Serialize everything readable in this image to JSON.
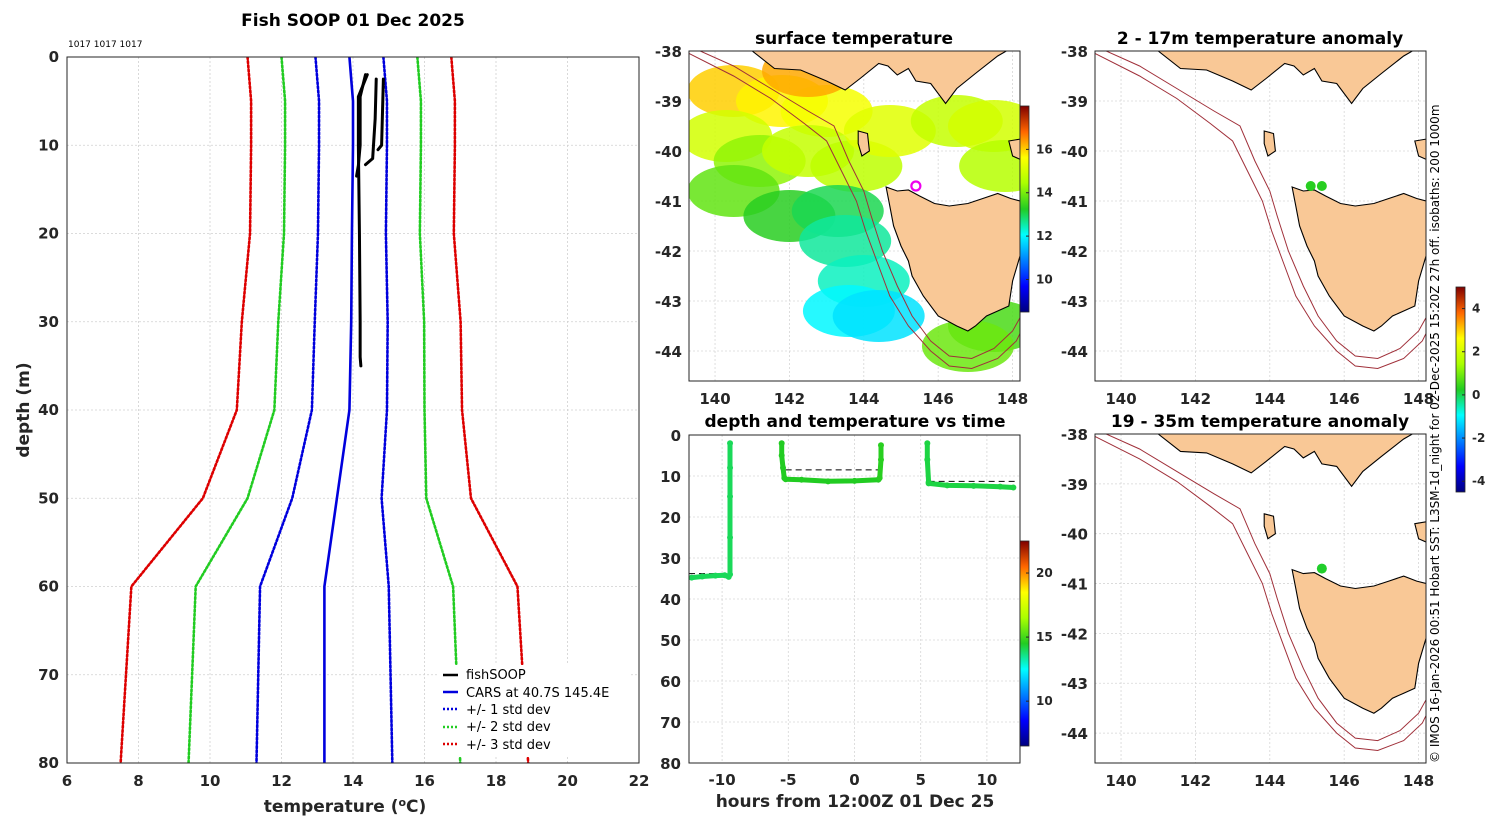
{
  "figure_title": "Fish SOOP 01 Dec 2025",
  "credit": "© IMOS 16-Jan-2026 00:51 Hobart SST: L3SM-1d_night for 02-Dec-2025 15:20Z 27h off. isobaths: 200  1000m",
  "colors": {
    "fish": "#000000",
    "cars": "#0000dd",
    "sd1": "#0000dd",
    "sd2": "#22cc22",
    "sd3": "#dd0000",
    "land": "#f9c896",
    "isobath": "#a0303a",
    "obs_point": "#22cc22",
    "marker": "#ee00ee"
  },
  "chart_data": [
    {
      "name": "profile",
      "type": "line",
      "title": "Fish SOOP 01 Dec 2025",
      "top_label": "1017 1017 1017",
      "xlabel": "temperature (",
      "xlabel_sup": "o",
      "xlabel_end": "C)",
      "ylabel": "depth (m)",
      "xlim": [
        6,
        22
      ],
      "ylim": [
        0,
        80
      ],
      "xticks": [
        6,
        8,
        10,
        12,
        14,
        16,
        18,
        20,
        22
      ],
      "yticks": [
        0,
        10,
        20,
        30,
        40,
        50,
        60,
        70,
        80
      ],
      "legend": [
        "fishSOOP",
        "CARS at 40.7S 145.4E",
        "+/- 1 std dev",
        "+/- 2 std dev",
        "+/- 3 std dev"
      ],
      "depth": [
        0,
        5,
        10,
        20,
        30,
        40,
        50,
        60,
        70,
        80
      ],
      "cars": [
        13.9,
        14.0,
        14.0,
        13.97,
        13.95,
        13.9,
        13.55,
        13.2,
        13.2,
        13.2
      ],
      "std": [
        0.95,
        0.95,
        0.95,
        0.95,
        1.02,
        1.05,
        1.25,
        1.8,
        1.85,
        1.9
      ],
      "fish_casts": [
        {
          "depth": [
            2.0,
            4.5,
            10.0,
            12.3,
            13.5
          ],
          "temp": [
            14.35,
            14.2,
            14.2,
            14.15,
            14.1
          ]
        },
        {
          "depth": [
            2.5,
            7.0,
            11.5,
            12.2
          ],
          "temp": [
            14.65,
            14.62,
            14.55,
            14.35
          ]
        },
        {
          "depth": [
            2.5,
            7.0,
            10.0,
            10.5
          ],
          "temp": [
            14.85,
            14.82,
            14.8,
            14.7
          ]
        },
        {
          "depth": [
            2.0,
            4.5,
            10.0,
            20.0,
            30.0,
            34.0,
            35.0
          ],
          "temp": [
            14.4,
            14.15,
            14.15,
            14.18,
            14.2,
            14.2,
            14.22
          ]
        }
      ]
    },
    {
      "name": "surface_map",
      "type": "heatmap",
      "title": "surface temperature",
      "xlim": [
        139.3,
        148.2
      ],
      "ylim": [
        -44.6,
        -38
      ],
      "xticks": [
        140,
        142,
        144,
        146,
        148
      ],
      "yticks": [
        -38,
        -39,
        -40,
        -41,
        -42,
        -43,
        -44
      ],
      "colorbar": {
        "vmin": 8.5,
        "vmax": 18,
        "ticks": [
          10,
          12,
          14,
          16
        ]
      },
      "marker": {
        "lon": 145.4,
        "lat": -40.7
      },
      "sst_patches": [
        {
          "lon": 140.5,
          "lat": -38.8,
          "value": 16.0
        },
        {
          "lon": 141.8,
          "lat": -39.0,
          "value": 15.7
        },
        {
          "lon": 143.0,
          "lat": -39.2,
          "value": 15.5
        },
        {
          "lon": 142.5,
          "lat": -38.4,
          "value": 16.3
        },
        {
          "lon": 140.3,
          "lat": -39.7,
          "value": 15.0
        },
        {
          "lon": 141.2,
          "lat": -40.2,
          "value": 14.2
        },
        {
          "lon": 142.5,
          "lat": -40.0,
          "value": 14.8
        },
        {
          "lon": 143.8,
          "lat": -40.3,
          "value": 14.7
        },
        {
          "lon": 144.7,
          "lat": -39.6,
          "value": 15.2
        },
        {
          "lon": 146.5,
          "lat": -39.4,
          "value": 14.8
        },
        {
          "lon": 147.5,
          "lat": -39.5,
          "value": 15.0
        },
        {
          "lon": 147.8,
          "lat": -40.3,
          "value": 14.6
        },
        {
          "lon": 140.5,
          "lat": -40.8,
          "value": 13.8
        },
        {
          "lon": 142.0,
          "lat": -41.3,
          "value": 13.3
        },
        {
          "lon": 143.3,
          "lat": -41.2,
          "value": 13.0
        },
        {
          "lon": 143.5,
          "lat": -41.8,
          "value": 12.6
        },
        {
          "lon": 144.0,
          "lat": -42.6,
          "value": 12.4
        },
        {
          "lon": 143.6,
          "lat": -43.2,
          "value": 12.0
        },
        {
          "lon": 144.4,
          "lat": -43.3,
          "value": 11.8
        },
        {
          "lon": 147.5,
          "lat": -43.5,
          "value": 13.6
        },
        {
          "lon": 146.8,
          "lat": -43.9,
          "value": 13.9
        }
      ]
    },
    {
      "name": "depth_time",
      "type": "scatter",
      "title": "depth and temperature vs time",
      "xlabel": "hours from 12:00Z 01 Dec 25",
      "xlim": [
        -12.5,
        12.5
      ],
      "ylim": [
        0,
        80
      ],
      "xticks": [
        -10,
        -5,
        0,
        5,
        10
      ],
      "yticks": [
        0,
        10,
        20,
        30,
        40,
        50,
        60,
        70,
        80
      ],
      "colorbar": {
        "vmin": 6.5,
        "vmax": 22.5,
        "ticks": [
          10,
          15,
          20
        ]
      },
      "segments": [
        {
          "hours": [
            -12.3,
            -11.5,
            -10.5,
            -9.8,
            -9.5
          ],
          "depth": [
            34.8,
            34.5,
            34.3,
            34.2,
            34.6
          ],
          "temp": 14.0
        },
        {
          "hours": [
            -9.4,
            -9.4,
            -9.4,
            -9.4,
            -9.4
          ],
          "depth": [
            34.0,
            25.0,
            15.0,
            8.0,
            2.0
          ],
          "temp": 14.0
        },
        {
          "hours": [
            -5.5,
            -5.5,
            -5.4,
            -5.3
          ],
          "depth": [
            2.0,
            5.0,
            8.0,
            10.5
          ],
          "temp": 14.5
        },
        {
          "hours": [
            -5.2,
            -4.0,
            -2.0,
            0.0,
            1.8
          ],
          "depth": [
            10.8,
            10.9,
            11.3,
            11.2,
            10.9
          ],
          "temp": 14.5
        },
        {
          "hours": [
            1.9,
            2.0,
            2.0
          ],
          "depth": [
            10.5,
            6.0,
            2.5
          ],
          "temp": 14.6
        },
        {
          "hours": [
            5.5,
            5.5,
            5.6
          ],
          "depth": [
            2.0,
            6.0,
            11.5
          ],
          "temp": 14.2
        },
        {
          "hours": [
            5.6,
            7.0,
            9.0,
            11.0,
            12.0
          ],
          "depth": [
            11.8,
            12.3,
            12.4,
            12.6,
            12.8
          ],
          "temp": 14.2
        }
      ],
      "thermocline": [
        {
          "hours": [
            -12.5,
            -9.5
          ],
          "depth": [
            33.8,
            33.8
          ]
        },
        {
          "hours": [
            -5.2,
            1.9
          ],
          "depth": [
            8.5,
            8.5
          ]
        },
        {
          "hours": [
            5.6,
            12.2
          ],
          "depth": [
            11.3,
            11.3
          ]
        }
      ]
    },
    {
      "name": "anomaly_shallow",
      "type": "scatter",
      "title": "2 - 17m temperature anomaly",
      "xlim": [
        139.3,
        148.2
      ],
      "ylim": [
        -44.6,
        -38
      ],
      "xticks": [
        140,
        142,
        144,
        146,
        148
      ],
      "yticks": [
        -38,
        -39,
        -40,
        -41,
        -42,
        -43,
        -44
      ],
      "points": [
        {
          "lon": 145.1,
          "lat": -40.7,
          "anomaly": 0.3
        },
        {
          "lon": 145.4,
          "lat": -40.7,
          "anomaly": 0.3
        }
      ]
    },
    {
      "name": "anomaly_deep",
      "type": "scatter",
      "title": "19 - 35m temperature anomaly",
      "xlim": [
        139.3,
        148.2
      ],
      "ylim": [
        -44.6,
        -38
      ],
      "xticks": [
        140,
        142,
        144,
        146,
        148
      ],
      "yticks": [
        -38,
        -39,
        -40,
        -41,
        -42,
        -43,
        -44
      ],
      "points": [
        {
          "lon": 145.4,
          "lat": -40.7,
          "anomaly": 0.2
        }
      ]
    },
    {
      "name": "anomaly_colorbar",
      "type": "heatmap",
      "vmin": -4.5,
      "vmax": 5.0,
      "ticks": [
        -4,
        -2,
        0,
        2,
        4
      ]
    }
  ]
}
